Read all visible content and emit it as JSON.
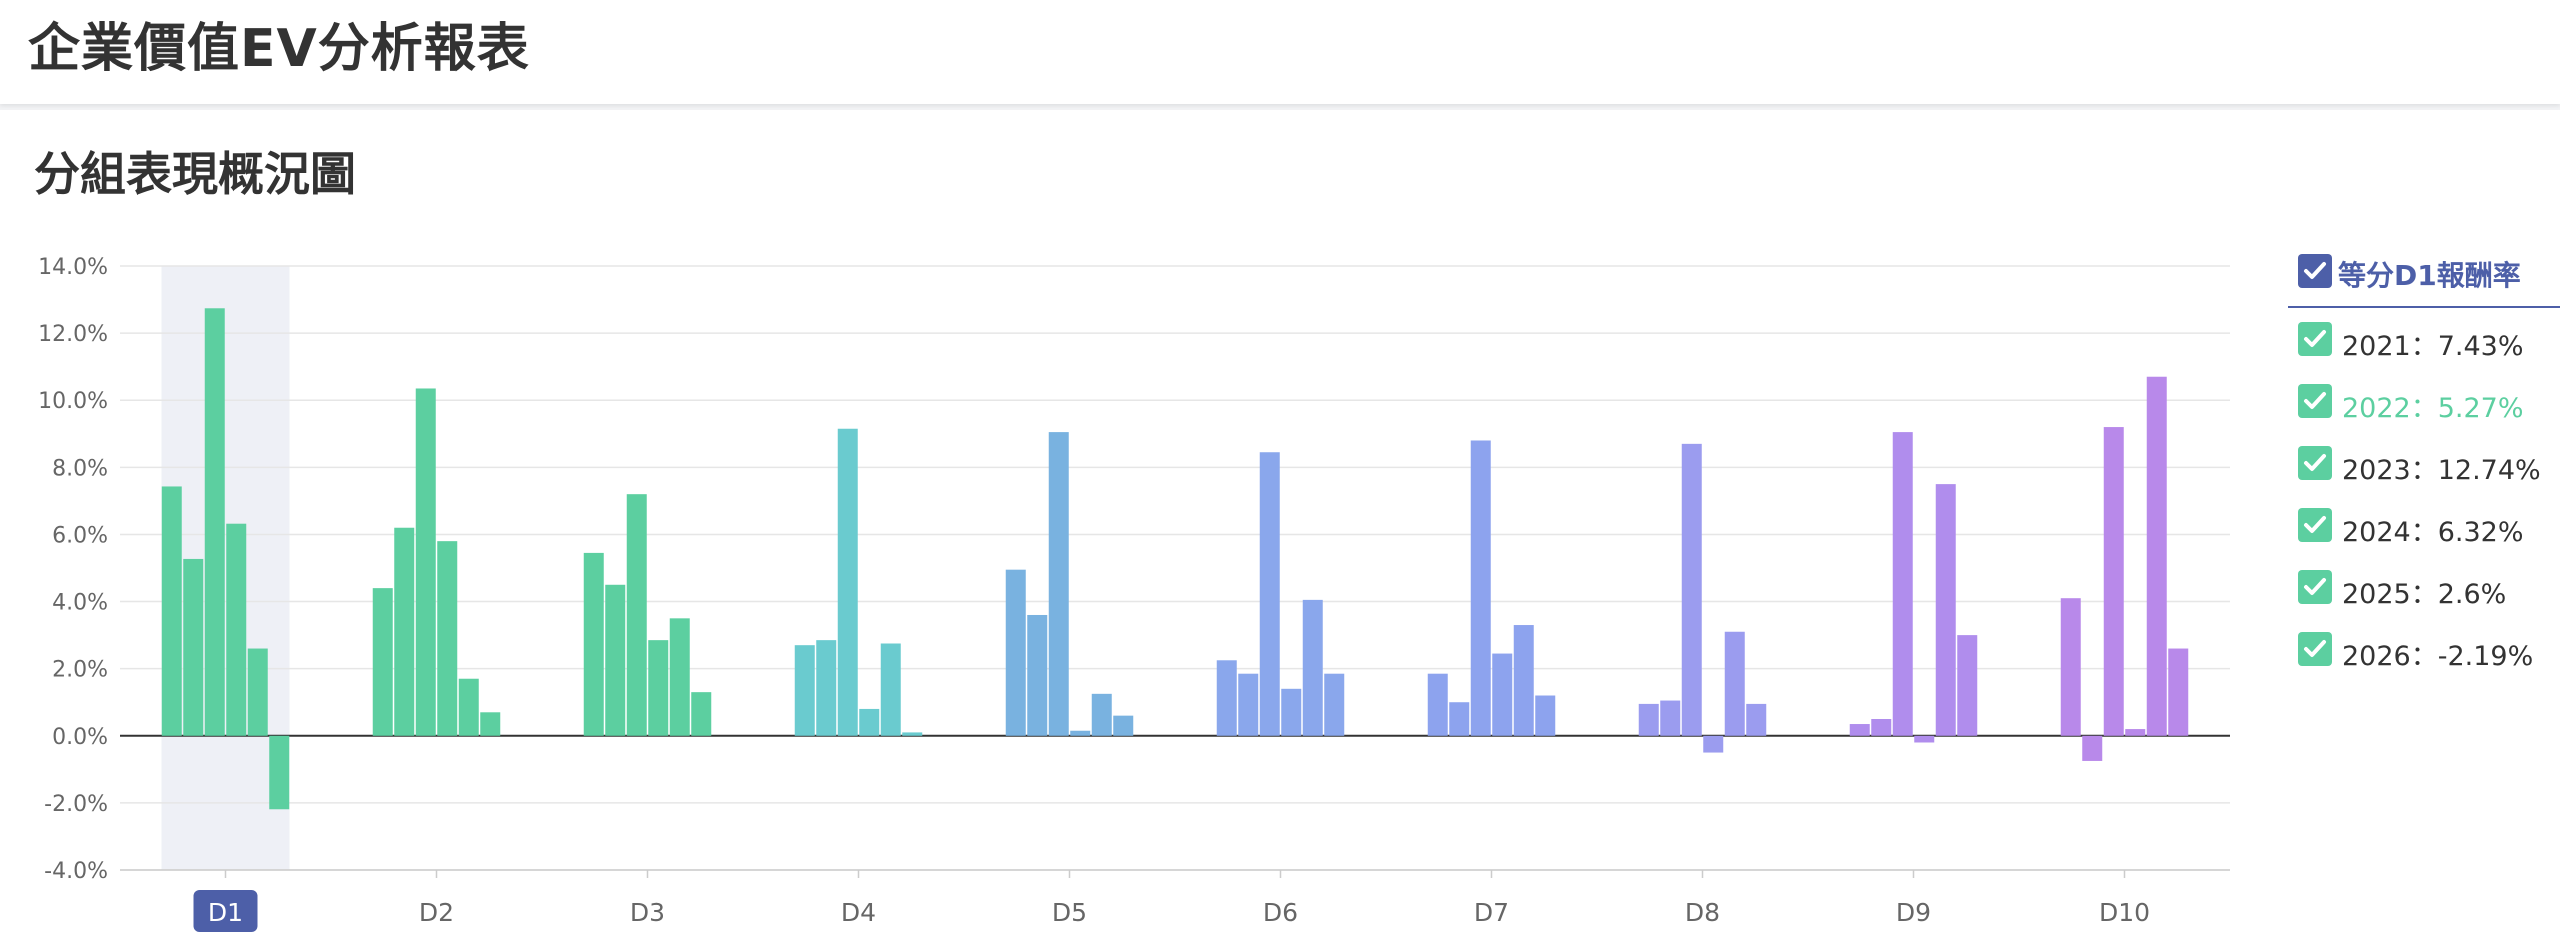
{
  "header": {
    "title": "企業價值EV分析報表"
  },
  "card": {
    "title": "分組表現概況圖"
  },
  "legend": {
    "title": "等分D1報酬率",
    "items": [
      {
        "label": "2021：7.43%",
        "active": false
      },
      {
        "label": "2022：5.27%",
        "active": true
      },
      {
        "label": "2023：12.74%",
        "active": false
      },
      {
        "label": "2024：6.32%",
        "active": false
      },
      {
        "label": "2025：2.6%",
        "active": false
      },
      {
        "label": "2026：-2.19%",
        "active": false
      }
    ]
  },
  "chart_data": {
    "type": "bar",
    "categories": [
      "D1",
      "D2",
      "D3",
      "D4",
      "D5",
      "D6",
      "D7",
      "D8",
      "D9",
      "D10"
    ],
    "selected_category": "D1",
    "ylim": [
      -4.0,
      14.0
    ],
    "yticks": [
      "14.0%",
      "12.0%",
      "10.0%",
      "8.0%",
      "6.0%",
      "4.0%",
      "2.0%",
      "0.0%",
      "-2.0%",
      "-4.0%"
    ],
    "grid": true,
    "legend_position": "right",
    "series": [
      {
        "name": "2021",
        "values": [
          7.43,
          4.4,
          5.45,
          2.7,
          4.95,
          2.25,
          1.85,
          0.95,
          0.35,
          4.1
        ]
      },
      {
        "name": "2022",
        "values": [
          5.27,
          6.2,
          4.5,
          2.85,
          3.6,
          1.85,
          1.0,
          1.05,
          0.5,
          -0.75
        ]
      },
      {
        "name": "2023",
        "values": [
          12.74,
          10.35,
          7.2,
          9.15,
          9.05,
          8.45,
          8.8,
          8.7,
          9.05,
          9.2
        ]
      },
      {
        "name": "2024",
        "values": [
          6.32,
          5.8,
          2.85,
          0.8,
          0.15,
          1.4,
          2.45,
          -0.5,
          -0.2,
          0.2
        ]
      },
      {
        "name": "2025",
        "values": [
          2.6,
          1.7,
          3.5,
          2.75,
          1.25,
          4.05,
          3.3,
          3.1,
          7.5,
          10.7
        ]
      },
      {
        "name": "2026",
        "values": [
          -2.19,
          0.7,
          1.3,
          0.1,
          0.6,
          1.85,
          1.2,
          0.95,
          3.0,
          2.6
        ]
      }
    ],
    "category_colors": [
      "#5ccfa0",
      "#5ccfa0",
      "#5ccfa0",
      "#6acbcf",
      "#79b2e0",
      "#8aa7ec",
      "#8da3ee",
      "#9b9cef",
      "#b08ded",
      "#b889ea"
    ]
  },
  "colors": {
    "accent": "#4d5fa8",
    "legend_check": "#5ccfa0",
    "highlight_band": "#eef0f6"
  }
}
